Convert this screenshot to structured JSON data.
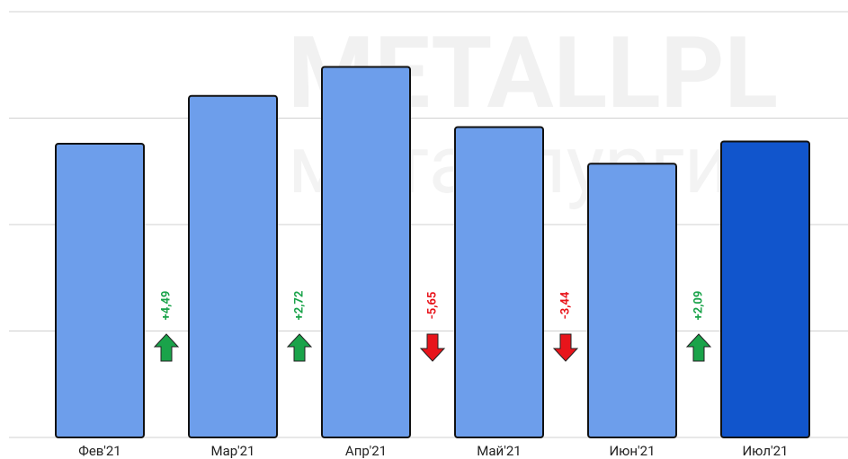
{
  "chart_data": {
    "type": "bar",
    "categories": [
      "Фев'21",
      "Мар'21",
      "Апр'21",
      "Май'21",
      "Июн'21",
      "Июл'21"
    ],
    "values": [
      27.6,
      32.09,
      34.81,
      29.16,
      25.72,
      27.81
    ],
    "colors": [
      "#6d9eeb",
      "#6d9eeb",
      "#6d9eeb",
      "#6d9eeb",
      "#6d9eeb",
      "#1155cc"
    ],
    "changes": [
      4.49,
      2.72,
      -5.65,
      -3.44,
      2.09
    ],
    "change_labels": [
      "+4,49",
      "+2,72",
      "-5,65",
      "-3,44",
      "+2,09"
    ],
    "up_color": "#1aa34a",
    "down_color": "#e8141b",
    "watermark": [
      "METALLPL",
      "металлургис"
    ],
    "ylim": [
      0,
      40
    ],
    "yticks": [
      0,
      10,
      20,
      30,
      40
    ],
    "grid": true
  }
}
